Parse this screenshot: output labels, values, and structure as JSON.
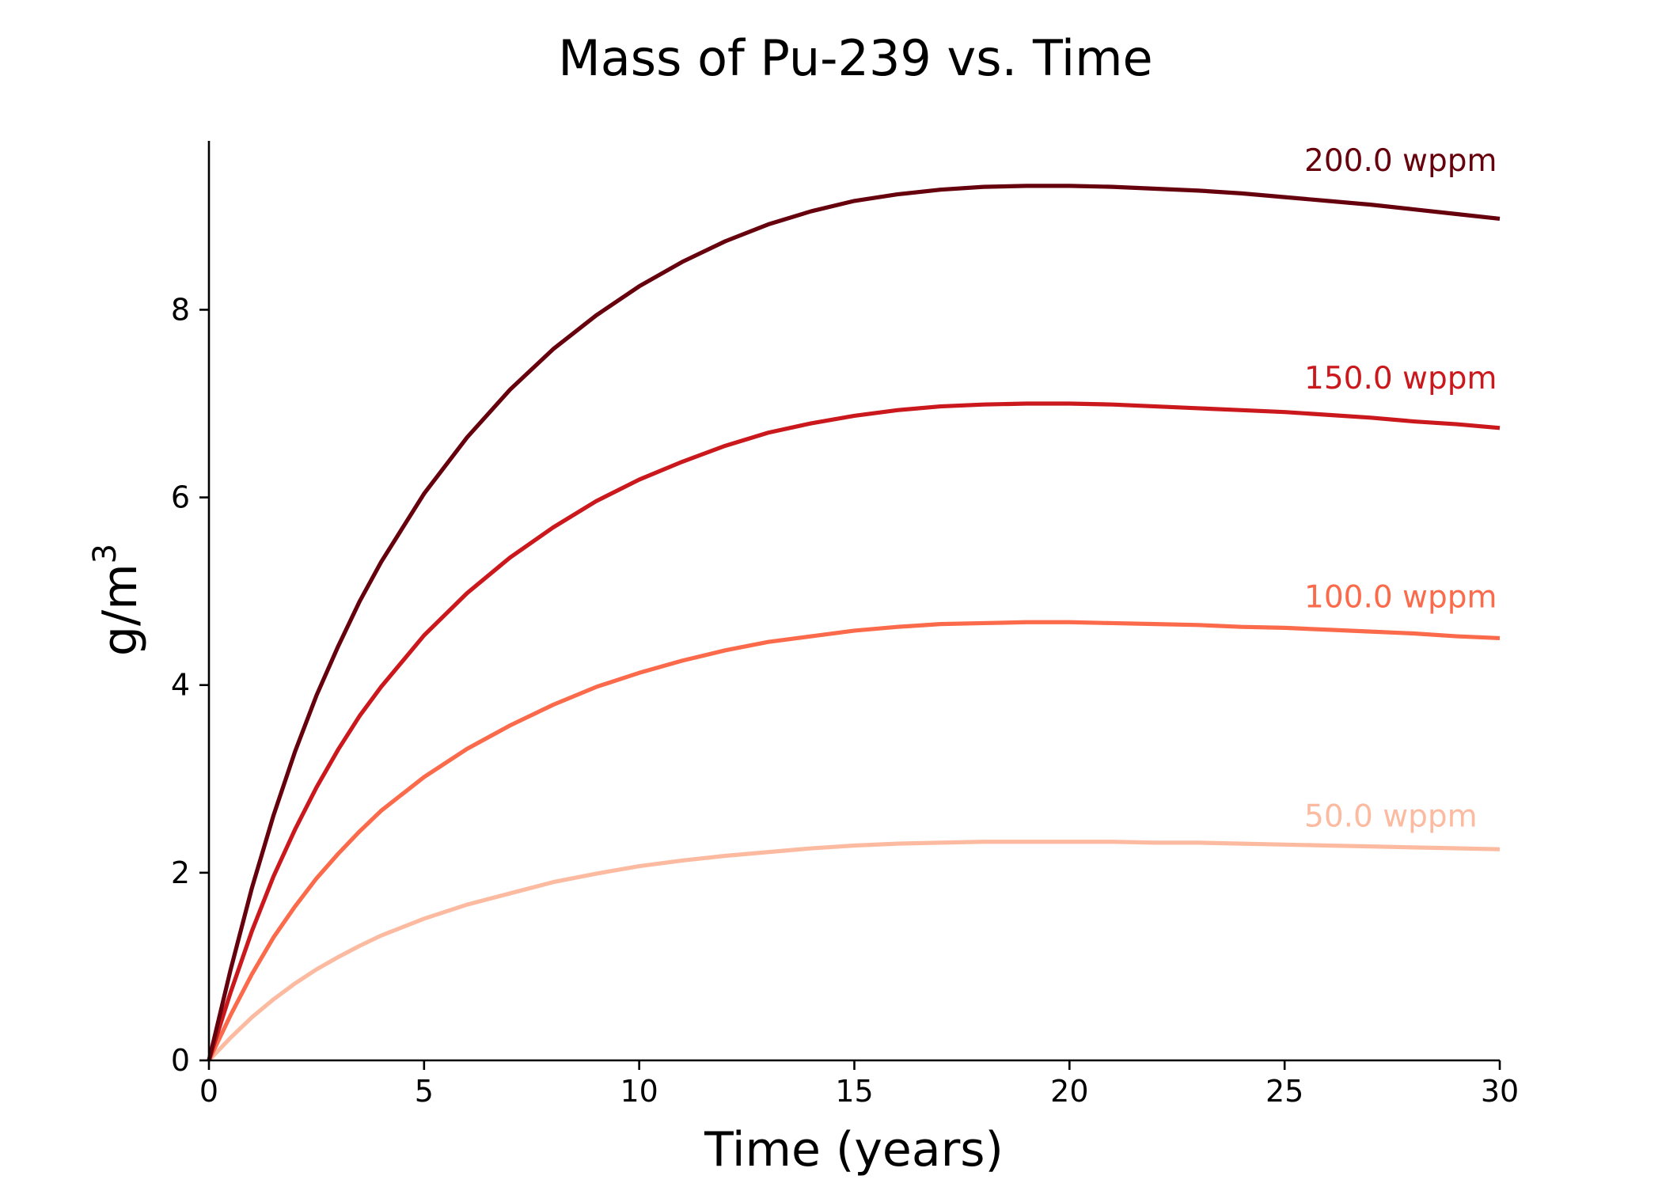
{
  "chart_data": {
    "type": "line",
    "title": "Mass of Pu-239 vs. Time",
    "xlabel": "Time (years)",
    "ylabel_base": "g/m",
    "ylabel_sup": "3",
    "xlim": [
      0,
      30
    ],
    "ylim": [
      0,
      9.8
    ],
    "xticks": [
      0,
      5,
      10,
      15,
      20,
      25,
      30
    ],
    "yticks": [
      0,
      2,
      4,
      6,
      8
    ],
    "grid": false,
    "legend": "inline labels at right end of each line",
    "x": [
      0,
      0.5,
      1,
      1.5,
      2,
      2.5,
      3,
      3.5,
      4,
      5,
      6,
      7,
      8,
      9,
      10,
      11,
      12,
      13,
      14,
      15,
      16,
      17,
      18,
      19,
      20,
      21,
      22,
      23,
      24,
      25,
      26,
      27,
      28,
      29,
      30
    ],
    "series": [
      {
        "name": "50.0 wppm",
        "color": "#fcbba1",
        "values": [
          0,
          0.24,
          0.46,
          0.65,
          0.82,
          0.97,
          1.1,
          1.22,
          1.33,
          1.51,
          1.66,
          1.78,
          1.9,
          1.99,
          2.07,
          2.13,
          2.18,
          2.22,
          2.26,
          2.29,
          2.31,
          2.32,
          2.33,
          2.33,
          2.33,
          2.33,
          2.32,
          2.32,
          2.31,
          2.3,
          2.29,
          2.28,
          2.27,
          2.26,
          2.25
        ]
      },
      {
        "name": "100.0 wppm",
        "color": "#fb6a4a",
        "values": [
          0,
          0.48,
          0.92,
          1.31,
          1.64,
          1.94,
          2.2,
          2.44,
          2.66,
          3.02,
          3.32,
          3.57,
          3.79,
          3.98,
          4.13,
          4.26,
          4.37,
          4.46,
          4.52,
          4.58,
          4.62,
          4.65,
          4.66,
          4.67,
          4.67,
          4.66,
          4.65,
          4.64,
          4.62,
          4.61,
          4.59,
          4.57,
          4.55,
          4.52,
          4.5
        ]
      },
      {
        "name": "150.0 wppm",
        "color": "#cb181d",
        "values": [
          0,
          0.72,
          1.38,
          1.96,
          2.46,
          2.91,
          3.31,
          3.67,
          3.98,
          4.53,
          4.98,
          5.36,
          5.68,
          5.96,
          6.19,
          6.38,
          6.55,
          6.69,
          6.79,
          6.87,
          6.93,
          6.97,
          6.99,
          7.0,
          7.0,
          6.99,
          6.97,
          6.95,
          6.93,
          6.91,
          6.88,
          6.85,
          6.81,
          6.78,
          6.74
        ]
      },
      {
        "name": "200.0 wppm",
        "color": "#67000d",
        "values": [
          0,
          0.96,
          1.84,
          2.61,
          3.29,
          3.89,
          4.41,
          4.89,
          5.31,
          6.04,
          6.64,
          7.15,
          7.58,
          7.94,
          8.25,
          8.51,
          8.73,
          8.91,
          9.05,
          9.16,
          9.23,
          9.28,
          9.31,
          9.32,
          9.32,
          9.31,
          9.29,
          9.27,
          9.24,
          9.2,
          9.16,
          9.12,
          9.07,
          9.02,
          8.97
        ]
      }
    ]
  }
}
